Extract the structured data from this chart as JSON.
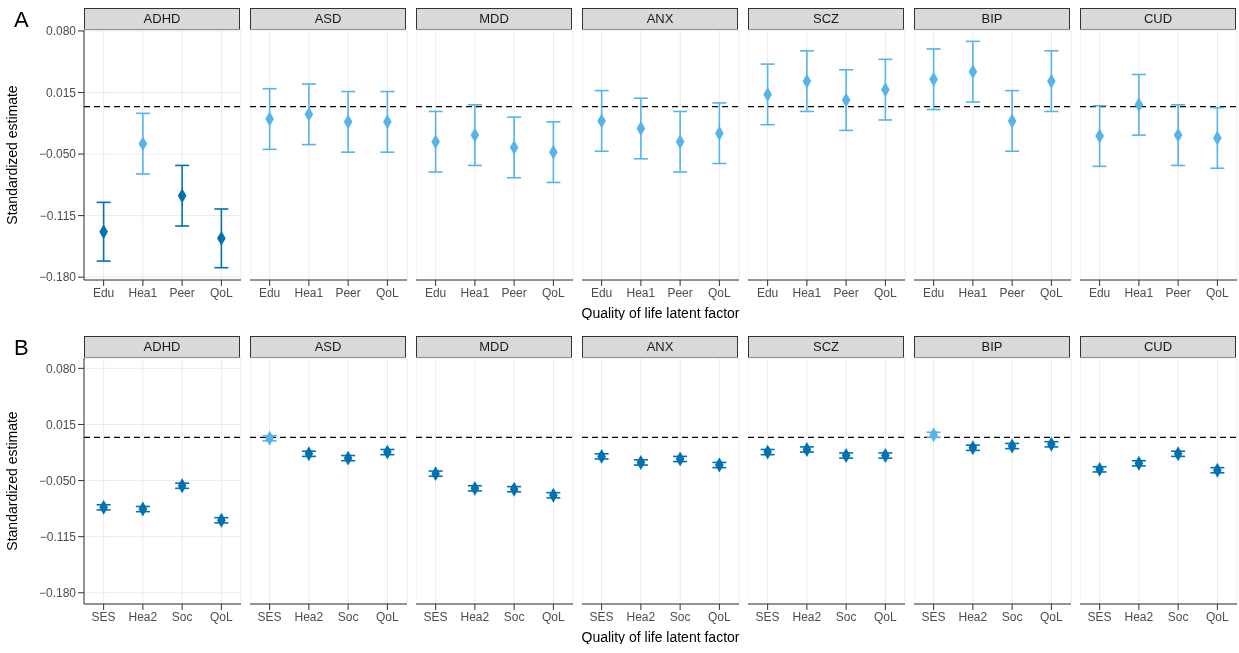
{
  "chart_data": [
    {
      "type": "scatter",
      "title": "ADHD",
      "annotations": [
        "A"
      ],
      "ylabel": "Standardized estimate",
      "categories": [
        "Edu",
        "Hea1",
        "Peer",
        "QoL"
      ],
      "values": [
        -0.132,
        -0.039,
        -0.094,
        -0.139
      ],
      "colors": [
        "#0072b2",
        "#56b4e9",
        "#0072b2",
        "#0072b2"
      ],
      "errors": [
        0.031,
        0.032,
        0.032,
        0.031
      ],
      "ylim": [
        -0.183,
        0.081
      ],
      "yticks": [
        {
          "value": 0.08,
          "label": "0.080"
        },
        {
          "value": 0.015,
          "label": "0.015"
        },
        {
          "value": -0.05,
          "label": "−0.050"
        },
        {
          "value": -0.115,
          "label": "−0.115"
        },
        {
          "value": -0.18,
          "label": "−0.180"
        }
      ],
      "ref_lines": [
        {
          "axis": "y",
          "value": 0,
          "color": "#000000",
          "line_style": "dashed"
        }
      ],
      "grid": true,
      "marker": "diamond"
    },
    {
      "type": "scatter",
      "title": "ASD",
      "categories": [
        "Edu",
        "Hea1",
        "Peer",
        "QoL"
      ],
      "values": [
        -0.013,
        -0.008,
        -0.016,
        -0.016
      ],
      "colors": [
        "#56b4e9",
        "#56b4e9",
        "#56b4e9",
        "#56b4e9"
      ],
      "errors": [
        0.032,
        0.032,
        0.032,
        0.032
      ],
      "ylim": [
        -0.183,
        0.081
      ],
      "yticks": [
        {
          "value": 0.08,
          "label": null
        },
        {
          "value": 0.015,
          "label": null
        },
        {
          "value": -0.05,
          "label": null
        },
        {
          "value": -0.115,
          "label": null
        },
        {
          "value": -0.18,
          "label": null
        }
      ],
      "ref_lines": [
        {
          "axis": "y",
          "value": 0,
          "color": "#000000",
          "line_style": "dashed"
        }
      ],
      "grid": true,
      "marker": "diamond",
      "tick_labels": "x"
    },
    {
      "type": "scatter",
      "title": "MDD",
      "categories": [
        "Edu",
        "Hea1",
        "Peer",
        "QoL"
      ],
      "values": [
        -0.037,
        -0.03,
        -0.043,
        -0.048
      ],
      "colors": [
        "#56b4e9",
        "#56b4e9",
        "#56b4e9",
        "#56b4e9"
      ],
      "errors": [
        0.032,
        0.032,
        0.032,
        0.032
      ],
      "ylim": [
        -0.183,
        0.081
      ],
      "yticks": [
        {
          "value": 0.08,
          "label": null
        },
        {
          "value": 0.015,
          "label": null
        },
        {
          "value": -0.05,
          "label": null
        },
        {
          "value": -0.115,
          "label": null
        },
        {
          "value": -0.18,
          "label": null
        }
      ],
      "ref_lines": [
        {
          "axis": "y",
          "value": 0,
          "color": "#000000",
          "line_style": "dashed"
        }
      ],
      "grid": true,
      "marker": "diamond",
      "tick_labels": "x"
    },
    {
      "type": "scatter",
      "title": "ANX",
      "xlabel": "Quality of life latent factor",
      "categories": [
        "Edu",
        "Hea1",
        "Peer",
        "QoL"
      ],
      "values": [
        -0.015,
        -0.023,
        -0.037,
        -0.028
      ],
      "colors": [
        "#56b4e9",
        "#56b4e9",
        "#56b4e9",
        "#56b4e9"
      ],
      "errors": [
        0.032,
        0.032,
        0.032,
        0.032
      ],
      "ylim": [
        -0.183,
        0.081
      ],
      "yticks": [
        {
          "value": 0.08,
          "label": null
        },
        {
          "value": 0.015,
          "label": null
        },
        {
          "value": -0.05,
          "label": null
        },
        {
          "value": -0.115,
          "label": null
        },
        {
          "value": -0.18,
          "label": null
        }
      ],
      "ref_lines": [
        {
          "axis": "y",
          "value": 0,
          "color": "#000000",
          "line_style": "dashed"
        }
      ],
      "grid": true,
      "marker": "diamond",
      "tick_labels": "x"
    },
    {
      "type": "scatter",
      "title": "SCZ",
      "categories": [
        "Edu",
        "Hea1",
        "Peer",
        "QoL"
      ],
      "values": [
        0.013,
        0.027,
        0.007,
        0.018
      ],
      "colors": [
        "#56b4e9",
        "#56b4e9",
        "#56b4e9",
        "#56b4e9"
      ],
      "errors": [
        0.032,
        0.032,
        0.032,
        0.032
      ],
      "ylim": [
        -0.183,
        0.081
      ],
      "yticks": [
        {
          "value": 0.08,
          "label": null
        },
        {
          "value": 0.015,
          "label": null
        },
        {
          "value": -0.05,
          "label": null
        },
        {
          "value": -0.115,
          "label": null
        },
        {
          "value": -0.18,
          "label": null
        }
      ],
      "ref_lines": [
        {
          "axis": "y",
          "value": 0,
          "color": "#000000",
          "line_style": "dashed"
        }
      ],
      "grid": true,
      "marker": "diamond",
      "tick_labels": "x"
    },
    {
      "type": "scatter",
      "title": "BIP",
      "categories": [
        "Edu",
        "Hea1",
        "Peer",
        "QoL"
      ],
      "values": [
        0.029,
        0.037,
        -0.015,
        0.027
      ],
      "colors": [
        "#56b4e9",
        "#56b4e9",
        "#56b4e9",
        "#56b4e9"
      ],
      "errors": [
        0.032,
        0.032,
        0.032,
        0.032
      ],
      "ylim": [
        -0.183,
        0.081
      ],
      "yticks": [
        {
          "value": 0.08,
          "label": null
        },
        {
          "value": 0.015,
          "label": null
        },
        {
          "value": -0.05,
          "label": null
        },
        {
          "value": -0.115,
          "label": null
        },
        {
          "value": -0.18,
          "label": null
        }
      ],
      "ref_lines": [
        {
          "axis": "y",
          "value": 0,
          "color": "#000000",
          "line_style": "dashed"
        }
      ],
      "grid": true,
      "marker": "diamond",
      "tick_labels": "x"
    },
    {
      "type": "scatter",
      "title": "CUD",
      "categories": [
        "Edu",
        "Hea1",
        "Peer",
        "QoL"
      ],
      "values": [
        -0.031,
        0.002,
        -0.03,
        -0.033
      ],
      "colors": [
        "#56b4e9",
        "#56b4e9",
        "#56b4e9",
        "#56b4e9"
      ],
      "errors": [
        0.032,
        0.032,
        0.032,
        0.032
      ],
      "ylim": [
        -0.183,
        0.081
      ],
      "yticks": [
        {
          "value": 0.08,
          "label": null
        },
        {
          "value": 0.015,
          "label": null
        },
        {
          "value": -0.05,
          "label": null
        },
        {
          "value": -0.115,
          "label": null
        },
        {
          "value": -0.18,
          "label": null
        }
      ],
      "ref_lines": [
        {
          "axis": "y",
          "value": 0,
          "color": "#000000",
          "line_style": "dashed"
        }
      ],
      "grid": true,
      "marker": "diamond",
      "tick_labels": "x"
    },
    {
      "type": "scatter",
      "title": "ADHD",
      "annotations": [
        "B"
      ],
      "ylabel": "Standardized estimate",
      "categories": [
        "SES",
        "Hea2",
        "Soc",
        "QoL"
      ],
      "values": [
        -0.081,
        -0.083,
        -0.056,
        -0.096
      ],
      "colors": [
        "#0072b2",
        "#0072b2",
        "#0072b2",
        "#0072b2"
      ],
      "errors": [
        0.003,
        0.003,
        0.003,
        0.003
      ],
      "ylim": [
        -0.193,
        0.092
      ],
      "yticks": [
        {
          "value": 0.08,
          "label": "0.080"
        },
        {
          "value": 0.015,
          "label": "0.015"
        },
        {
          "value": -0.05,
          "label": "−0.050"
        },
        {
          "value": -0.115,
          "label": "−0.115"
        },
        {
          "value": -0.18,
          "label": "−0.180"
        }
      ],
      "ref_lines": [
        {
          "axis": "y",
          "value": 0,
          "color": "#000000",
          "line_style": "dashed"
        }
      ],
      "grid": true,
      "marker": "diamond"
    },
    {
      "type": "scatter",
      "title": "ASD",
      "categories": [
        "SES",
        "Hea2",
        "Soc",
        "QoL"
      ],
      "values": [
        -0.001,
        -0.019,
        -0.024,
        -0.017
      ],
      "colors": [
        "#56b4e9",
        "#0072b2",
        "#0072b2",
        "#0072b2"
      ],
      "errors": [
        0.003,
        0.003,
        0.003,
        0.003
      ],
      "ylim": [
        -0.193,
        0.092
      ],
      "yticks": [
        {
          "value": 0.08,
          "label": null
        },
        {
          "value": 0.015,
          "label": null
        },
        {
          "value": -0.05,
          "label": null
        },
        {
          "value": -0.115,
          "label": null
        },
        {
          "value": -0.18,
          "label": null
        }
      ],
      "ref_lines": [
        {
          "axis": "y",
          "value": 0,
          "color": "#000000",
          "line_style": "dashed"
        }
      ],
      "grid": true,
      "marker": "diamond",
      "tick_labels": "x"
    },
    {
      "type": "scatter",
      "title": "MDD",
      "categories": [
        "SES",
        "Hea2",
        "Soc",
        "QoL"
      ],
      "values": [
        -0.042,
        -0.059,
        -0.06,
        -0.067
      ],
      "colors": [
        "#0072b2",
        "#0072b2",
        "#0072b2",
        "#0072b2"
      ],
      "errors": [
        0.003,
        0.003,
        0.003,
        0.003
      ],
      "ylim": [
        -0.193,
        0.092
      ],
      "yticks": [
        {
          "value": 0.08,
          "label": null
        },
        {
          "value": 0.015,
          "label": null
        },
        {
          "value": -0.05,
          "label": null
        },
        {
          "value": -0.115,
          "label": null
        },
        {
          "value": -0.18,
          "label": null
        }
      ],
      "ref_lines": [
        {
          "axis": "y",
          "value": 0,
          "color": "#000000",
          "line_style": "dashed"
        }
      ],
      "grid": true,
      "marker": "diamond",
      "tick_labels": "x"
    },
    {
      "type": "scatter",
      "title": "ANX",
      "xlabel": "Quality of life latent factor",
      "categories": [
        "SES",
        "Hea2",
        "Soc",
        "QoL"
      ],
      "values": [
        -0.022,
        -0.029,
        -0.025,
        -0.032
      ],
      "colors": [
        "#0072b2",
        "#0072b2",
        "#0072b2",
        "#0072b2"
      ],
      "errors": [
        0.003,
        0.003,
        0.003,
        0.003
      ],
      "ylim": [
        -0.193,
        0.092
      ],
      "yticks": [
        {
          "value": 0.08,
          "label": null
        },
        {
          "value": 0.015,
          "label": null
        },
        {
          "value": -0.05,
          "label": null
        },
        {
          "value": -0.115,
          "label": null
        },
        {
          "value": -0.18,
          "label": null
        }
      ],
      "ref_lines": [
        {
          "axis": "y",
          "value": 0,
          "color": "#000000",
          "line_style": "dashed"
        }
      ],
      "grid": true,
      "marker": "diamond",
      "tick_labels": "x"
    },
    {
      "type": "scatter",
      "title": "SCZ",
      "categories": [
        "SES",
        "Hea2",
        "Soc",
        "QoL"
      ],
      "values": [
        -0.017,
        -0.014,
        -0.021,
        -0.021
      ],
      "colors": [
        "#0072b2",
        "#0072b2",
        "#0072b2",
        "#0072b2"
      ],
      "errors": [
        0.003,
        0.003,
        0.003,
        0.003
      ],
      "ylim": [
        -0.193,
        0.092
      ],
      "yticks": [
        {
          "value": 0.08,
          "label": null
        },
        {
          "value": 0.015,
          "label": null
        },
        {
          "value": -0.05,
          "label": null
        },
        {
          "value": -0.115,
          "label": null
        },
        {
          "value": -0.18,
          "label": null
        }
      ],
      "ref_lines": [
        {
          "axis": "y",
          "value": 0,
          "color": "#000000",
          "line_style": "dashed"
        }
      ],
      "grid": true,
      "marker": "diamond",
      "tick_labels": "x"
    },
    {
      "type": "scatter",
      "title": "BIP",
      "categories": [
        "SES",
        "Hea2",
        "Soc",
        "QoL"
      ],
      "values": [
        0.003,
        -0.012,
        -0.01,
        -0.008
      ],
      "colors": [
        "#56b4e9",
        "#0072b2",
        "#0072b2",
        "#0072b2"
      ],
      "errors": [
        0.003,
        0.003,
        0.003,
        0.003
      ],
      "ylim": [
        -0.193,
        0.092
      ],
      "yticks": [
        {
          "value": 0.08,
          "label": null
        },
        {
          "value": 0.015,
          "label": null
        },
        {
          "value": -0.05,
          "label": null
        },
        {
          "value": -0.115,
          "label": null
        },
        {
          "value": -0.18,
          "label": null
        }
      ],
      "ref_lines": [
        {
          "axis": "y",
          "value": 0,
          "color": "#000000",
          "line_style": "dashed"
        }
      ],
      "grid": true,
      "marker": "diamond",
      "tick_labels": "x"
    },
    {
      "type": "scatter",
      "title": "CUD",
      "categories": [
        "SES",
        "Hea2",
        "Soc",
        "QoL"
      ],
      "values": [
        -0.037,
        -0.03,
        -0.019,
        -0.038
      ],
      "colors": [
        "#0072b2",
        "#0072b2",
        "#0072b2",
        "#0072b2"
      ],
      "errors": [
        0.003,
        0.003,
        0.003,
        0.003
      ],
      "ylim": [
        -0.193,
        0.092
      ],
      "yticks": [
        {
          "value": 0.08,
          "label": null
        },
        {
          "value": 0.015,
          "label": null
        },
        {
          "value": -0.05,
          "label": null
        },
        {
          "value": -0.115,
          "label": null
        },
        {
          "value": -0.18,
          "label": null
        }
      ],
      "ref_lines": [
        {
          "axis": "y",
          "value": 0,
          "color": "#000000",
          "line_style": "dashed"
        }
      ],
      "grid": true,
      "marker": "diamond",
      "tick_labels": "x"
    }
  ]
}
